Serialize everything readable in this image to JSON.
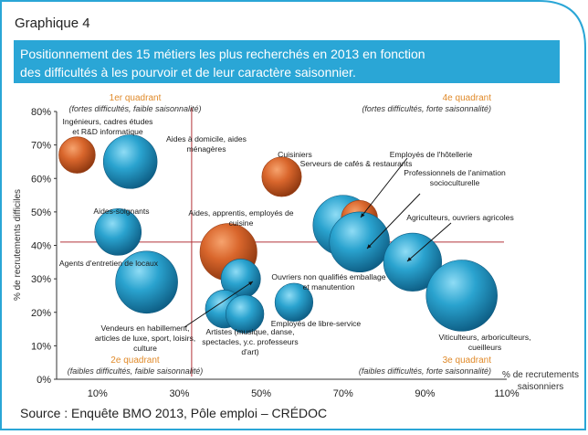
{
  "figure_label": "Graphique 4",
  "title_lines": [
    "Positionnement des 15 métiers les plus recherchés en 2013 en fonction",
    "des difficultés à les pourvoir et de leur caractère saisonnier."
  ],
  "source": "Source : Enquête BMO 2013, Pôle emploi – CRÉDOC",
  "colors": {
    "frame": "#2aa6d6",
    "title_bg": "#2aa6d6",
    "title_text": "#ffffff",
    "blue_bubble": "#1f8fb7",
    "orange_bubble": "#d9662c",
    "quadrant_line": "#b3343a",
    "quadrant_text": "#e08a2a"
  },
  "quadrants": {
    "q1": {
      "label": "1er quadrant",
      "desc": "(fortes difficultés, faible saisonnalité)"
    },
    "q2": {
      "label": "2e quadrant",
      "desc": "(faibles difficultés, faible saisonnalité)"
    },
    "q3": {
      "label": "3e quadrant",
      "desc": "(faibles difficultés, forte saisonnalité)"
    },
    "q4": {
      "label": "4e quadrant",
      "desc": "(fortes difficultés, forte saisonnalité)"
    }
  },
  "chart_data": {
    "type": "scatter",
    "subtype": "bubble",
    "xlabel": "% de recrutements saisonniers",
    "ylabel": "% de recrutements difficiles",
    "xlim": [
      0,
      110
    ],
    "ylim": [
      0,
      80
    ],
    "x_ticks": [
      "10%",
      "30%",
      "50%",
      "70%",
      "90%",
      "110%"
    ],
    "x_tick_values": [
      10,
      30,
      50,
      70,
      90,
      110
    ],
    "y_ticks": [
      "0%",
      "10%",
      "20%",
      "30%",
      "40%",
      "50%",
      "60%",
      "70%",
      "80%"
    ],
    "y_tick_values": [
      0,
      10,
      20,
      30,
      40,
      50,
      60,
      70,
      80
    ],
    "reference_lines": {
      "x": 33,
      "y": 41
    },
    "grid": false,
    "points": [
      {
        "label": "Ingénieurs, cadres études et R&D informatique",
        "x": 5,
        "y": 67,
        "size": 1.1,
        "color": "orange"
      },
      {
        "label": "Aides à domicile, aides ménagères",
        "x": 18,
        "y": 65,
        "size": 2.4,
        "color": "blue"
      },
      {
        "label": "Aides-soignants",
        "x": 15,
        "y": 44,
        "size": 1.8,
        "color": "blue"
      },
      {
        "label": "Agents d'entretien de locaux",
        "x": 22,
        "y": 29,
        "size": 3.2,
        "color": "blue"
      },
      {
        "label": "Aides, apprentis, employés de cuisine",
        "x": 42,
        "y": 38,
        "size": 2.7,
        "color": "orange"
      },
      {
        "label": "Vendeurs en habillement, articles de luxe, sport, loisirs, culture",
        "x": 45,
        "y": 30,
        "size": 1.3,
        "color": "blue"
      },
      {
        "label": "Artistes (musique, danse, spectacles, y.c. professeurs d'art)",
        "x": 41,
        "y": 21,
        "size": 1.2,
        "color": "blue"
      },
      {
        "label": "Employés de libre-service",
        "x": 46,
        "y": 19.5,
        "size": 1.2,
        "color": "blue"
      },
      {
        "label": "Cuisiniers",
        "x": 55,
        "y": 60.5,
        "size": 1.3,
        "color": "orange"
      },
      {
        "label": "Ouvriers non qualifiés emballage et manutention",
        "x": 58,
        "y": 23,
        "size": 1.2,
        "color": "blue"
      },
      {
        "label": "Serveurs de cafés & restaurants",
        "x": 70,
        "y": 46,
        "size": 3.0,
        "color": "blue"
      },
      {
        "label": "Employés de l'hôtellerie",
        "x": 74,
        "y": 48,
        "size": 1.1,
        "color": "orange"
      },
      {
        "label": "Professionnels de l'animation socioculturelle",
        "x": 74,
        "y": 41,
        "size": 3.0,
        "color": "blue"
      },
      {
        "label": "Agriculteurs, ouvriers agricoles",
        "x": 87,
        "y": 35,
        "size": 2.8,
        "color": "blue"
      },
      {
        "label": "Viticulteurs, arboriculteurs, cueilleurs",
        "x": 99,
        "y": 25,
        "size": 4.2,
        "color": "blue"
      }
    ],
    "annotations": [
      {
        "text_lines": [
          "Ingénieurs, cadres études",
          "et R&D informatique"
        ]
      },
      {
        "text_lines": [
          "Aides à domicile, aides",
          "ménagères"
        ]
      },
      {
        "text_lines": [
          "Aides-soignants"
        ]
      },
      {
        "text_lines": [
          "Agents d'entretien de locaux"
        ]
      },
      {
        "text_lines": [
          "Aides, apprentis, employés de",
          "cuisine"
        ]
      },
      {
        "text_lines": [
          "Vendeurs en habillement,",
          "articles de luxe, sport, loisirs,",
          "culture"
        ]
      },
      {
        "text_lines": [
          "Artistes (musique, danse,",
          "spectacles, y.c. professeurs",
          "d'art)"
        ]
      },
      {
        "text_lines": [
          "Employés de libre-service"
        ]
      },
      {
        "text_lines": [
          "Cuisiniers"
        ]
      },
      {
        "text_lines": [
          "Ouvriers non qualifiés emballage",
          "et manutention"
        ]
      },
      {
        "text_lines": [
          "Serveurs de cafés & restaurants"
        ]
      },
      {
        "text_lines": [
          "Employés de l'hôtellerie"
        ]
      },
      {
        "text_lines": [
          "Professionnels de l'animation",
          "socioculturelle"
        ]
      },
      {
        "text_lines": [
          "Agriculteurs, ouvriers agricoles"
        ]
      },
      {
        "text_lines": [
          "Viticulteurs, arboriculteurs,",
          "cueilleurs"
        ]
      }
    ]
  }
}
